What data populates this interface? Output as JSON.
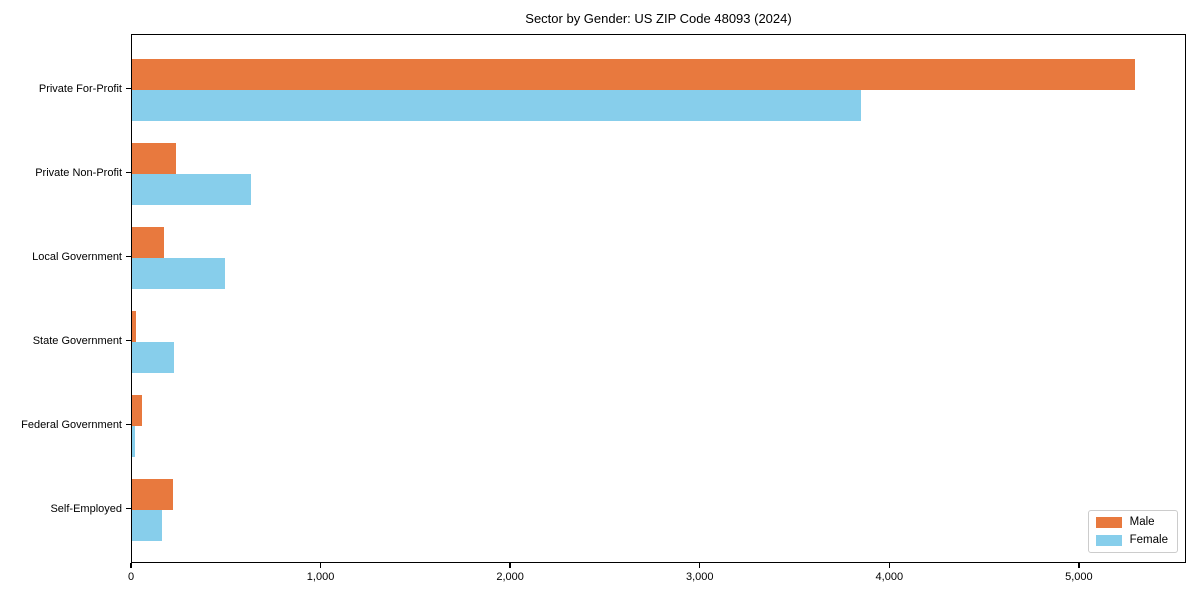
{
  "chart_data": {
    "type": "bar",
    "orientation": "horizontal",
    "title": "Sector by Gender: US ZIP Code 48093 (2024)",
    "categories": [
      "Private For-Profit",
      "Private Non-Profit",
      "Local Government",
      "State Government",
      "Federal Government",
      "Self-Employed"
    ],
    "series": [
      {
        "name": "Male",
        "color": "#e8793e",
        "values": [
          5300,
          230,
          170,
          20,
          55,
          215
        ]
      },
      {
        "name": "Female",
        "color": "#87ceeb",
        "values": [
          3855,
          630,
          490,
          220,
          15,
          160
        ]
      }
    ],
    "xlabel": "",
    "ylabel": "",
    "xlim": [
      0,
      5565
    ],
    "x_ticks": [
      0,
      1000,
      2000,
      3000,
      4000,
      5000
    ],
    "x_tick_labels": [
      "0",
      "1,000",
      "2,000",
      "3,000",
      "4,000",
      "5,000"
    ],
    "grid": false,
    "legend_position": "lower right",
    "axis_color": "#000000",
    "background_color": "#ffffff"
  }
}
